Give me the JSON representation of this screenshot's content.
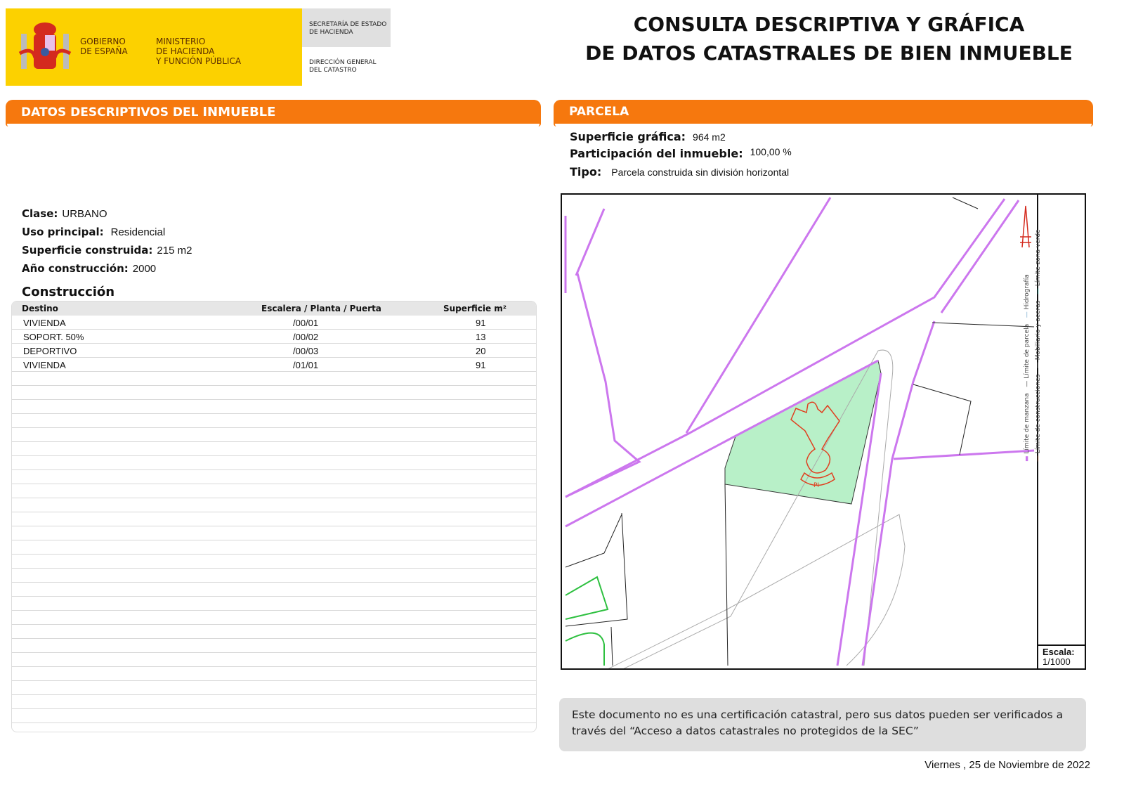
{
  "header": {
    "gov": "GOBIERNO DE ESPAÑA",
    "gov_l1": "GOBIERNO",
    "gov_l2": "DE ESPAÑA",
    "min_l1": "MINISTERIO",
    "min_l2": "DE HACIENDA",
    "min_l3": "Y FUNCIÓN PÚBLICA",
    "sec_l1": "SECRETARÍA DE ESTADO",
    "sec_l2": "DE HACIENDA",
    "dir_l1": "DIRECCIÓN GENERAL",
    "dir_l2": "DEL CATASTRO",
    "title_l1": "CONSULTA DESCRIPTIVA Y GRÁFICA",
    "title_l2": "DE DATOS CATASTRALES DE BIEN INMUEBLE"
  },
  "left": {
    "band_a": "DATOS DESCRIPTIVOS DEL ",
    "band_b": "INMUEBLE",
    "clase_label": "Clase:",
    "clase": "URBANO",
    "uso_label": "Uso principal:",
    "uso": "Residencial",
    "sup_label": "Superficie construida:",
    "sup": "215 m2",
    "anio_label": "Año construcción:",
    "anio": "2000",
    "construccion": "Construcción",
    "columns": [
      "Destino",
      "Escalera / Planta / Puerta",
      "Superficie m²"
    ],
    "rows": [
      [
        "VIVIENDA",
        "/00/01",
        "91"
      ],
      [
        "SOPORT. 50%",
        "/00/02",
        "13"
      ],
      [
        "DEPORTIVO",
        "/00/03",
        "20"
      ],
      [
        "VIVIENDA",
        "/01/01",
        "91"
      ]
    ]
  },
  "right": {
    "band": "PARCELA",
    "supg_label": "Superficie gráfica:",
    "supg": "964 m2",
    "part_label": "Participación del inmueble:",
    "part": "100,00 %",
    "tipo_label": "Tipo:",
    "tipo": "Parcela construida sin división horizontal",
    "map_label": "PI",
    "legend": [
      "Límite de manzana",
      "Límite de construcciones",
      "Límite de parcela",
      "Mobiliario y aceras",
      "Hidrografía",
      "Límite zona verde"
    ],
    "escala_label": "Escala:",
    "escala": "1/1000"
  },
  "colors": {
    "accent": "#f6780e",
    "logo_yellow": "#fcd100",
    "manzana": "#cc77ee",
    "parcela_fill": "#b8f0c8",
    "construcciones": "#e04020"
  },
  "notice": "Este documento no es una certificación catastral, pero sus datos pueden ser verificados a través del “Acceso a datos catastrales no protegidos de la SEC”",
  "date": "Viernes , 25 de Noviembre de 2022"
}
